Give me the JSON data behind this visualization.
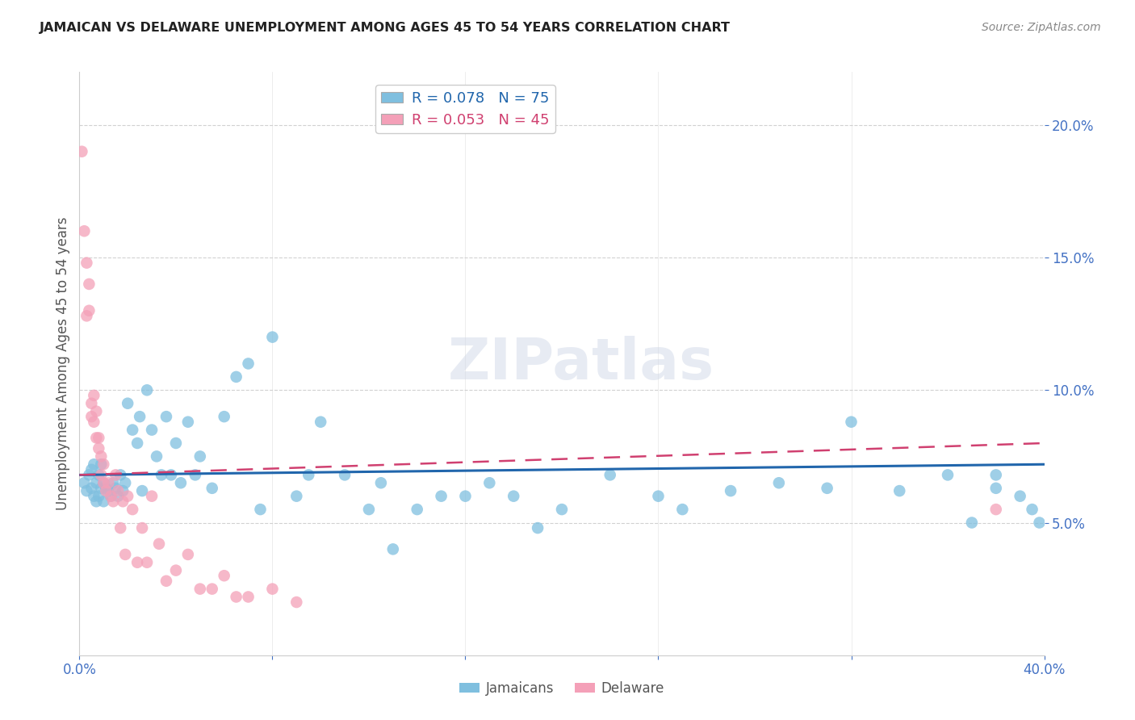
{
  "title": "JAMAICAN VS DELAWARE UNEMPLOYMENT AMONG AGES 45 TO 54 YEARS CORRELATION CHART",
  "source": "Source: ZipAtlas.com",
  "ylabel": "Unemployment Among Ages 45 to 54 years",
  "xlim": [
    0.0,
    0.4
  ],
  "ylim": [
    0.0,
    0.22
  ],
  "yticks": [
    0.05,
    0.1,
    0.15,
    0.2
  ],
  "ytick_labels": [
    "5.0%",
    "10.0%",
    "15.0%",
    "20.0%"
  ],
  "xtick_labels": [
    "0.0%",
    "",
    "",
    "",
    "",
    "40.0%"
  ],
  "blue_color": "#7fbfdf",
  "pink_color": "#f4a0b8",
  "blue_line_color": "#2166ac",
  "pink_line_color": "#d04070",
  "blue_line_slope": 0.01,
  "blue_line_intercept": 0.068,
  "pink_line_slope": 0.03,
  "pink_line_intercept": 0.068,
  "jamaicans_x": [
    0.002,
    0.003,
    0.004,
    0.005,
    0.005,
    0.006,
    0.006,
    0.007,
    0.007,
    0.008,
    0.008,
    0.009,
    0.009,
    0.01,
    0.01,
    0.011,
    0.012,
    0.013,
    0.014,
    0.015,
    0.016,
    0.017,
    0.018,
    0.019,
    0.02,
    0.022,
    0.024,
    0.025,
    0.026,
    0.028,
    0.03,
    0.032,
    0.034,
    0.036,
    0.038,
    0.04,
    0.042,
    0.045,
    0.048,
    0.05,
    0.055,
    0.06,
    0.065,
    0.07,
    0.075,
    0.08,
    0.09,
    0.095,
    0.1,
    0.11,
    0.12,
    0.125,
    0.13,
    0.14,
    0.15,
    0.16,
    0.17,
    0.18,
    0.19,
    0.2,
    0.22,
    0.24,
    0.25,
    0.27,
    0.29,
    0.31,
    0.32,
    0.34,
    0.36,
    0.37,
    0.38,
    0.38,
    0.39,
    0.395,
    0.398
  ],
  "jamaicans_y": [
    0.065,
    0.062,
    0.068,
    0.063,
    0.07,
    0.06,
    0.072,
    0.058,
    0.065,
    0.06,
    0.068,
    0.063,
    0.072,
    0.058,
    0.065,
    0.063,
    0.062,
    0.06,
    0.065,
    0.063,
    0.06,
    0.068,
    0.062,
    0.065,
    0.095,
    0.085,
    0.08,
    0.09,
    0.062,
    0.1,
    0.085,
    0.075,
    0.068,
    0.09,
    0.068,
    0.08,
    0.065,
    0.088,
    0.068,
    0.075,
    0.063,
    0.09,
    0.105,
    0.11,
    0.055,
    0.12,
    0.06,
    0.068,
    0.088,
    0.068,
    0.055,
    0.065,
    0.04,
    0.055,
    0.06,
    0.06,
    0.065,
    0.06,
    0.048,
    0.055,
    0.068,
    0.06,
    0.055,
    0.062,
    0.065,
    0.063,
    0.088,
    0.062,
    0.068,
    0.05,
    0.063,
    0.068,
    0.06,
    0.055,
    0.05
  ],
  "delaware_x": [
    0.001,
    0.002,
    0.003,
    0.003,
    0.004,
    0.004,
    0.005,
    0.005,
    0.006,
    0.006,
    0.007,
    0.007,
    0.008,
    0.008,
    0.009,
    0.009,
    0.01,
    0.01,
    0.011,
    0.012,
    0.013,
    0.014,
    0.015,
    0.016,
    0.017,
    0.018,
    0.019,
    0.02,
    0.022,
    0.024,
    0.026,
    0.028,
    0.03,
    0.033,
    0.036,
    0.04,
    0.045,
    0.05,
    0.055,
    0.06,
    0.065,
    0.07,
    0.08,
    0.09,
    0.38
  ],
  "delaware_y": [
    0.19,
    0.16,
    0.148,
    0.128,
    0.13,
    0.14,
    0.095,
    0.09,
    0.098,
    0.088,
    0.082,
    0.092,
    0.078,
    0.082,
    0.068,
    0.075,
    0.065,
    0.072,
    0.062,
    0.065,
    0.06,
    0.058,
    0.068,
    0.062,
    0.048,
    0.058,
    0.038,
    0.06,
    0.055,
    0.035,
    0.048,
    0.035,
    0.06,
    0.042,
    0.028,
    0.032,
    0.038,
    0.025,
    0.025,
    0.03,
    0.022,
    0.022,
    0.025,
    0.02,
    0.055
  ]
}
